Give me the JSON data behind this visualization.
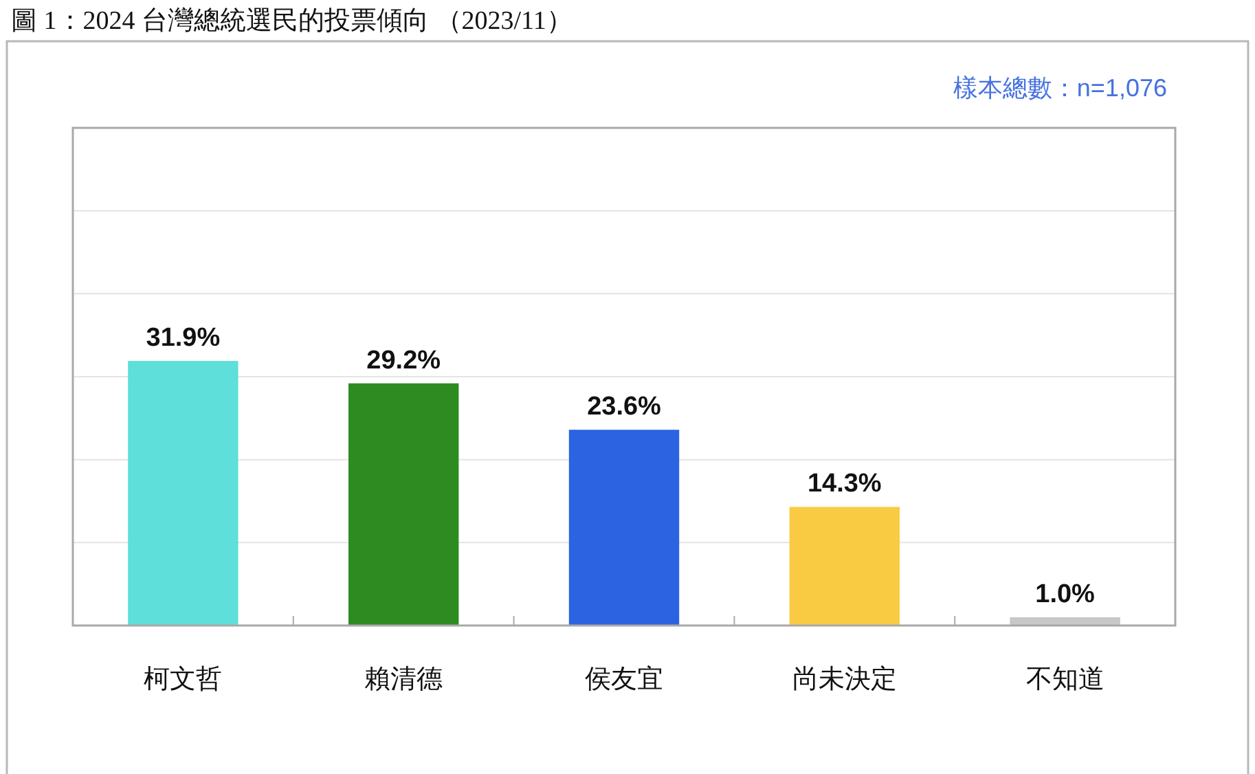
{
  "chart_data": {
    "type": "bar",
    "title": "圖 1：2024 台灣總統選民的投票傾向 （2023/11）",
    "annotations": [
      "樣本總數：n=1,076"
    ],
    "categories": [
      "柯文哲",
      "賴清德",
      "侯友宜",
      "尚未決定",
      "不知道"
    ],
    "values": [
      31.9,
      29.2,
      23.6,
      14.3,
      1.0
    ],
    "colors": [
      "#5edfd9",
      "#2e8b22",
      "#2b63e1",
      "#f9cb43",
      "#c8c8c8"
    ],
    "value_labels": [
      "31.9%",
      "29.2%",
      "23.6%",
      "14.3%",
      "1.0%"
    ],
    "ylim": [
      0,
      60
    ],
    "yticks": [
      {
        "value": 0,
        "label": null
      },
      {
        "value": 10,
        "label": null
      },
      {
        "value": 20,
        "label": null
      },
      {
        "value": 30,
        "label": null
      },
      {
        "value": 40,
        "label": null
      },
      {
        "value": 50,
        "label": null
      },
      {
        "value": 60,
        "label": null
      }
    ],
    "grid": "y",
    "tick_labels": "x"
  }
}
